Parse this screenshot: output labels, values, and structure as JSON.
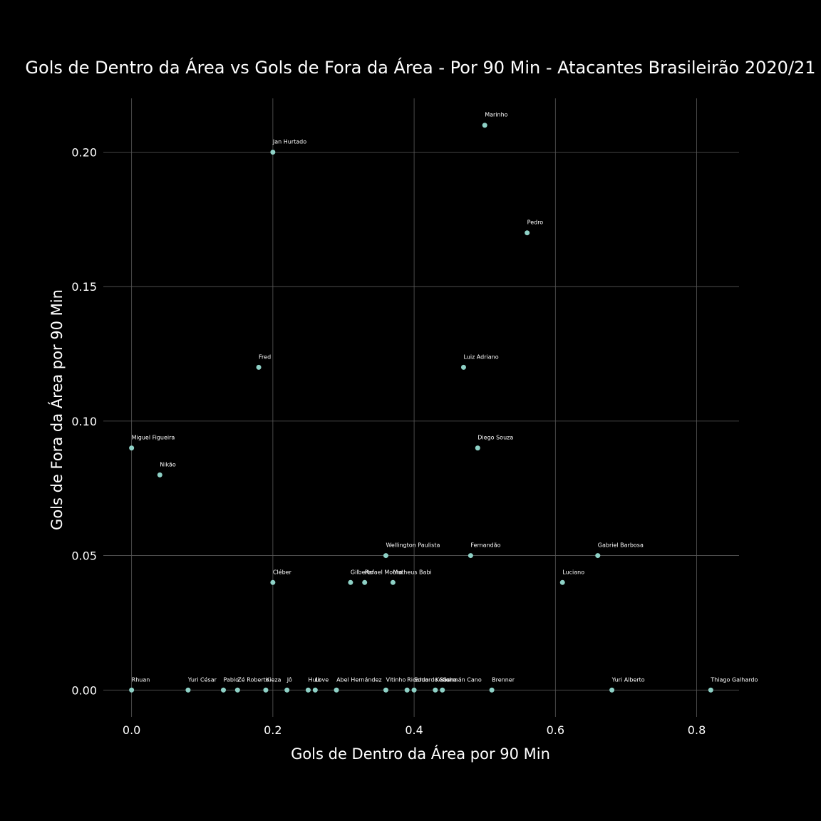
{
  "chart_data": {
    "type": "scatter",
    "title": "Gols de Dentro da Área vs Gols de Fora da Área - Por 90 Min - Atacantes Brasileirão 2020/21",
    "xlabel": "Gols de Dentro da Área por 90 Min",
    "ylabel": "Gols de Fora da Área por 90 Min",
    "xlim": [
      -0.04,
      0.86
    ],
    "ylim": [
      -0.01,
      0.22
    ],
    "grid": true,
    "point_color": "#8ed1c6",
    "background": "#000000",
    "x_ticks": [
      0.0,
      0.2,
      0.4,
      0.6,
      0.8
    ],
    "x_tick_labels": [
      "0.0",
      "0.2",
      "0.4",
      "0.6",
      "0.8"
    ],
    "y_ticks": [
      0.0,
      0.05,
      0.1,
      0.15,
      0.2
    ],
    "y_tick_labels": [
      "0.00",
      "0.05",
      "0.10",
      "0.15",
      "0.20"
    ],
    "points": [
      {
        "label": "Marinho",
        "x": 0.5,
        "y": 0.21
      },
      {
        "label": "Jan Hurtado",
        "x": 0.2,
        "y": 0.2
      },
      {
        "label": "Pedro",
        "x": 0.56,
        "y": 0.17
      },
      {
        "label": "Fred",
        "x": 0.18,
        "y": 0.12
      },
      {
        "label": "Luiz Adriano",
        "x": 0.47,
        "y": 0.12
      },
      {
        "label": "Miguel Figueira",
        "x": 0.0,
        "y": 0.09
      },
      {
        "label": "Diego Souza",
        "x": 0.49,
        "y": 0.09
      },
      {
        "label": "Nikão",
        "x": 0.04,
        "y": 0.08
      },
      {
        "label": "Wellington Paulista",
        "x": 0.36,
        "y": 0.05
      },
      {
        "label": "Fernandão",
        "x": 0.48,
        "y": 0.05
      },
      {
        "label": "Gabriel Barbosa",
        "x": 0.66,
        "y": 0.05
      },
      {
        "label": "Cléber",
        "x": 0.2,
        "y": 0.04
      },
      {
        "label": "Gilberto",
        "x": 0.31,
        "y": 0.04
      },
      {
        "label": "Rafael Moura",
        "x": 0.33,
        "y": 0.04
      },
      {
        "label": "Matheus Babi",
        "x": 0.37,
        "y": 0.04
      },
      {
        "label": "Luciano",
        "x": 0.61,
        "y": 0.04
      },
      {
        "label": "Rhuan",
        "x": 0.0,
        "y": 0.0
      },
      {
        "label": "Yuri César",
        "x": 0.08,
        "y": 0.0
      },
      {
        "label": "Pablo",
        "x": 0.13,
        "y": 0.0
      },
      {
        "label": "Zé Roberto",
        "x": 0.15,
        "y": 0.0
      },
      {
        "label": "Kieza",
        "x": 0.19,
        "y": 0.0
      },
      {
        "label": "Jô",
        "x": 0.22,
        "y": 0.0
      },
      {
        "label": "Hulk",
        "x": 0.25,
        "y": 0.0
      },
      {
        "label": "Love",
        "x": 0.26,
        "y": 0.0
      },
      {
        "label": "Abel Hernández",
        "x": 0.29,
        "y": 0.0
      },
      {
        "label": "Vitinho",
        "x": 0.36,
        "y": 0.0
      },
      {
        "label": "Ricardo",
        "x": 0.39,
        "y": 0.0
      },
      {
        "label": "Eduardo Sasha",
        "x": 0.4,
        "y": 0.0
      },
      {
        "label": "Keno",
        "x": 0.43,
        "y": 0.0
      },
      {
        "label": "Germán Cano",
        "x": 0.44,
        "y": 0.0
      },
      {
        "label": "Brenner",
        "x": 0.51,
        "y": 0.0
      },
      {
        "label": "Yuri Alberto",
        "x": 0.68,
        "y": 0.0
      },
      {
        "label": "Thiago Galhardo",
        "x": 0.82,
        "y": 0.0
      }
    ]
  }
}
